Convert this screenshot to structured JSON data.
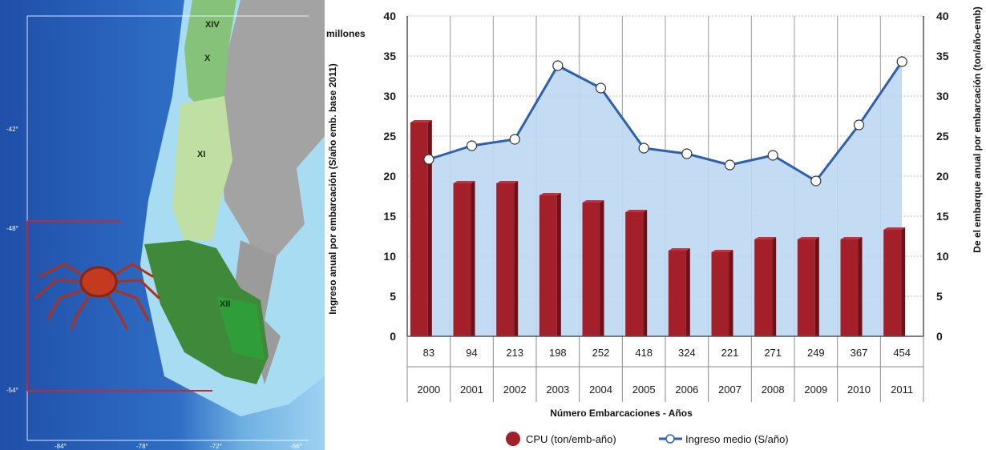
{
  "map": {
    "regions": [
      "XIV",
      "X",
      "XI",
      "XII"
    ],
    "lat_labels": [
      "-42°",
      "-48°",
      "-54°"
    ],
    "lon_labels": [
      "-84°",
      "-78°",
      "-72°",
      "-66°"
    ],
    "illustration": "red king crab (centolla)"
  },
  "chart_data": {
    "type": "bar",
    "categories": [
      "2000",
      "2001",
      "2002",
      "2003",
      "2004",
      "2005",
      "2006",
      "2007",
      "2008",
      "2009",
      "2010",
      "2011"
    ],
    "vessels": [
      "83",
      "94",
      "213",
      "198",
      "252",
      "418",
      "324",
      "221",
      "271",
      "249",
      "367",
      "454"
    ],
    "series": [
      {
        "name": "CPU (ton/emb-año)",
        "type": "bar",
        "axis": "right",
        "values": [
          26.7,
          19.1,
          19.1,
          17.6,
          16.7,
          15.5,
          10.7,
          10.5,
          12.1,
          12.1,
          12.1,
          13.3
        ]
      },
      {
        "name": "Ingreso medio (S/año)",
        "type": "line",
        "axis": "left",
        "values": [
          22.1,
          23.8,
          24.6,
          33.8,
          31.0,
          23.5,
          22.8,
          21.4,
          22.6,
          19.4,
          26.4,
          34.3
        ]
      }
    ],
    "ylim": [
      0,
      40
    ],
    "yticks": [
      "0",
      "5",
      "10",
      "15",
      "20",
      "25",
      "30",
      "35",
      "40"
    ],
    "y_unit_label": "millones",
    "ylabel": "Ingreso anual por embarcación (S/año emb. base 2011)",
    "y2label": "De el  embarque anual por embarcación (ton/año-emb)",
    "xlabel": "Número Embarcaciones - Años",
    "legend_position": "bottom",
    "grid": true,
    "colors": {
      "bar": "#a31f2a",
      "bar_dark": "#6e1119",
      "line": "#2e5fb0",
      "area": "#bcd8f2"
    }
  }
}
